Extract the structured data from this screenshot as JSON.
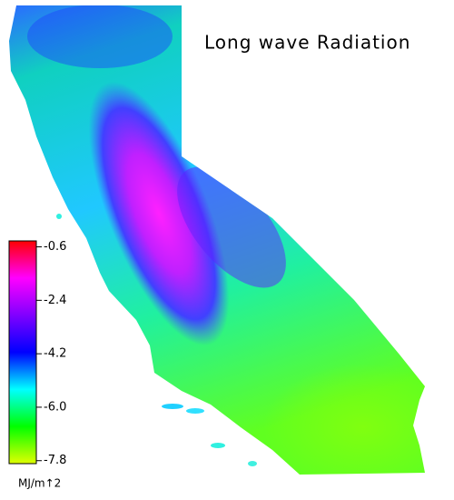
{
  "title": "Long wave Radiation",
  "colorbar": {
    "lim": [
      -7.9,
      -0.4
    ],
    "ticks": [
      -0.6,
      -2.4,
      -4.2,
      {
        "value": -6.0,
        "label": "-6.0"
      },
      -7.8
    ],
    "colors": [
      "#ff0000",
      "#ff00ff",
      "#8000ff",
      "#0000ff",
      "#00ffff",
      "#00ff00",
      "#e0ff00"
    ],
    "unit": "MJ/m↑2"
  }
}
